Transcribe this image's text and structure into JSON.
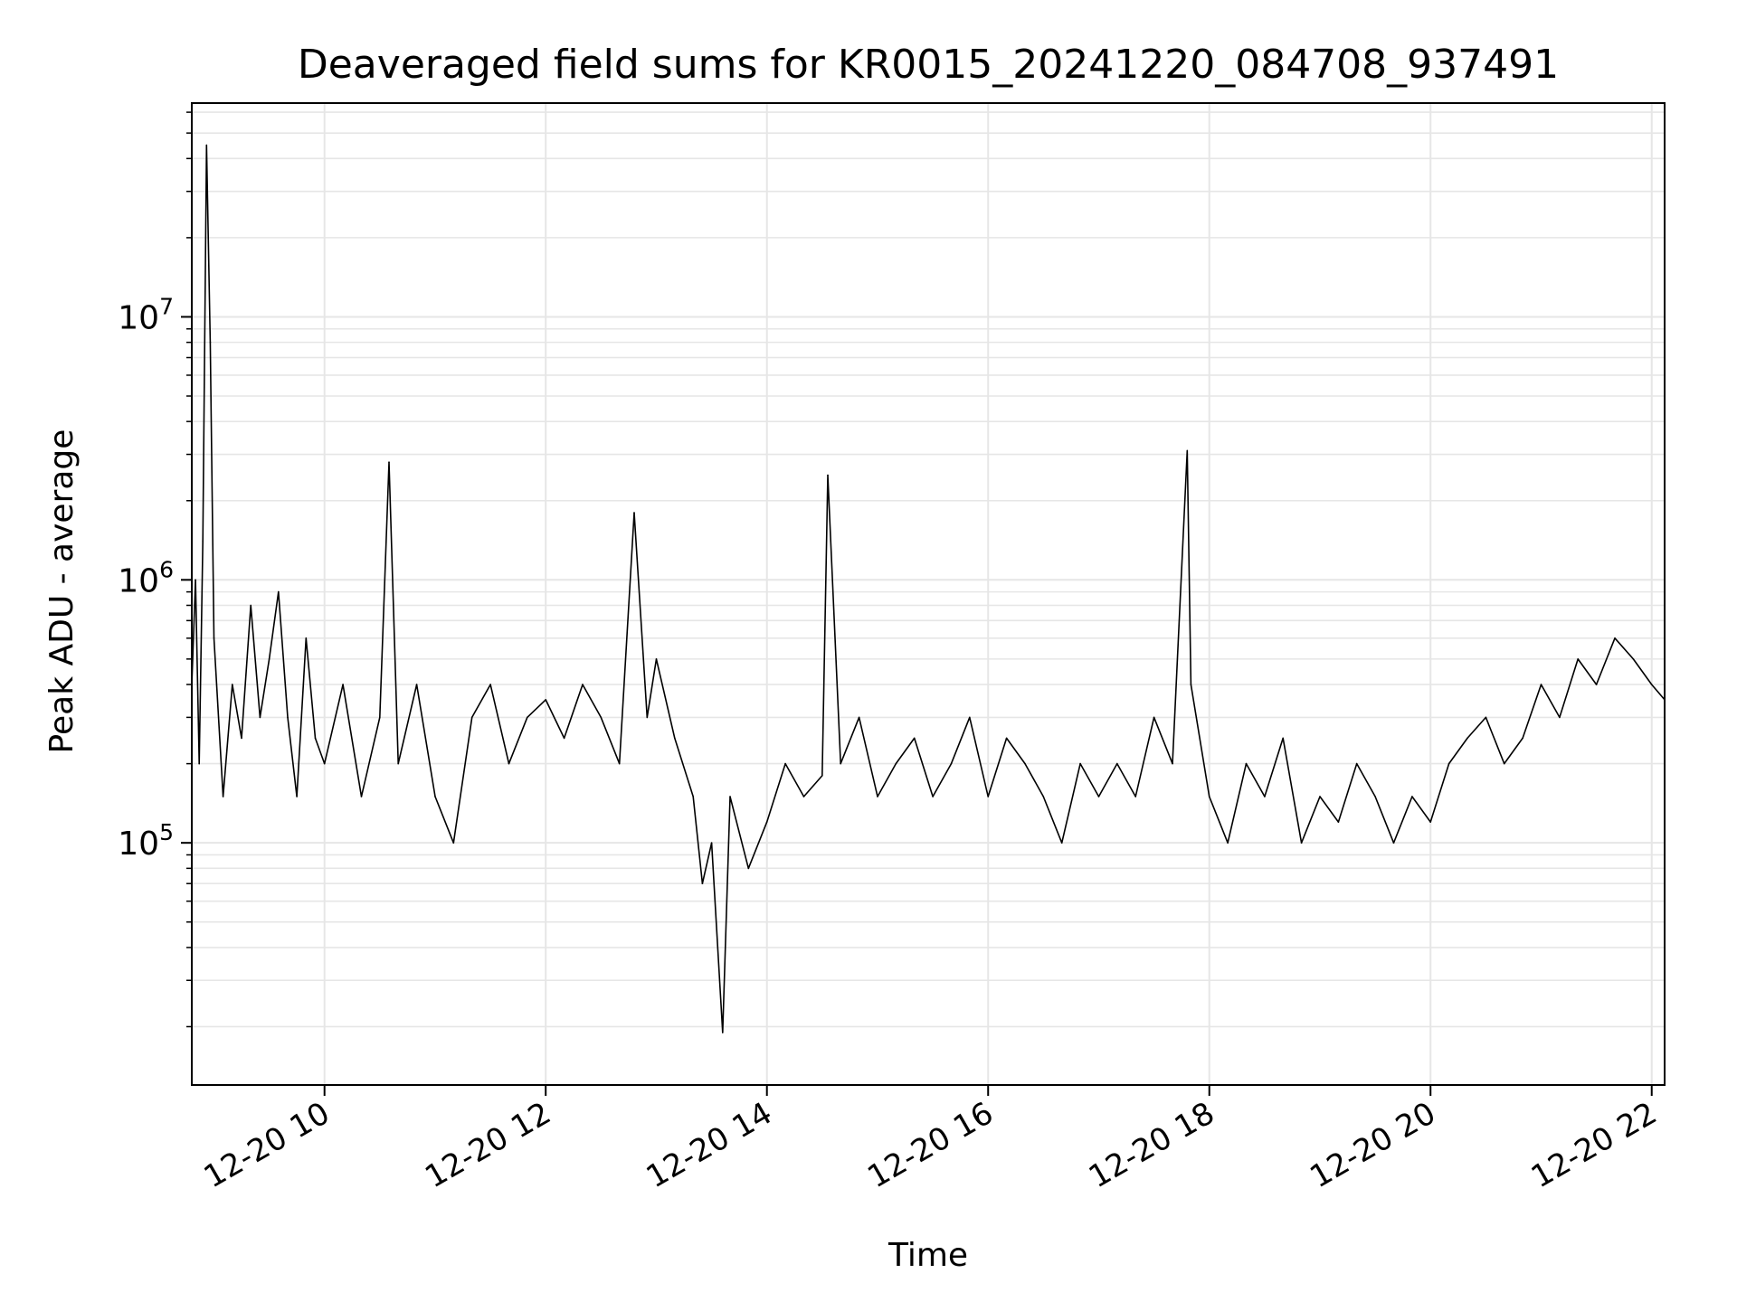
{
  "chart_data": {
    "type": "line",
    "title": "Deaveraged field sums for KR0015_20241220_084708_937491",
    "xlabel": "Time",
    "ylabel": "Peak ADU - average",
    "yscale": "log",
    "grid": true,
    "line_color": "#000000",
    "grid_color": "#e6e6e6",
    "xlim": [
      "12-20 08:48",
      "12-20 22:07"
    ],
    "ylim": [
      12000,
      65000000
    ],
    "x_ticks": [
      "12-20 10",
      "12-20 12",
      "12-20 14",
      "12-20 16",
      "12-20 18",
      "12-20 20",
      "12-20 22"
    ],
    "y_ticks": [
      {
        "value": 100000,
        "base": "10",
        "exp": "5"
      },
      {
        "value": 1000000,
        "base": "10",
        "exp": "6"
      },
      {
        "value": 10000000,
        "base": "10",
        "exp": "7"
      }
    ],
    "series": [
      {
        "x": [
          "12-20 08:48",
          "12-20 08:50",
          "12-20 08:52",
          "12-20 08:54",
          "12-20 08:56",
          "12-20 08:58",
          "12-20 09:00",
          "12-20 09:05",
          "12-20 09:10",
          "12-20 09:15",
          "12-20 09:20",
          "12-20 09:25",
          "12-20 09:30",
          "12-20 09:35",
          "12-20 09:40",
          "12-20 09:45",
          "12-20 09:50",
          "12-20 09:55",
          "12-20 10:00",
          "12-20 10:10",
          "12-20 10:20",
          "12-20 10:30",
          "12-20 10:35",
          "12-20 10:40",
          "12-20 10:50",
          "12-20 11:00",
          "12-20 11:10",
          "12-20 11:20",
          "12-20 11:30",
          "12-20 11:40",
          "12-20 11:50",
          "12-20 12:00",
          "12-20 12:10",
          "12-20 12:20",
          "12-20 12:30",
          "12-20 12:40",
          "12-20 12:48",
          "12-20 12:55",
          "12-20 13:00",
          "12-20 13:10",
          "12-20 13:20",
          "12-20 13:25",
          "12-20 13:30",
          "12-20 13:36",
          "12-20 13:40",
          "12-20 13:50",
          "12-20 14:00",
          "12-20 14:10",
          "12-20 14:20",
          "12-20 14:30",
          "12-20 14:33",
          "12-20 14:40",
          "12-20 14:50",
          "12-20 15:00",
          "12-20 15:10",
          "12-20 15:20",
          "12-20 15:30",
          "12-20 15:40",
          "12-20 15:50",
          "12-20 16:00",
          "12-20 16:10",
          "12-20 16:20",
          "12-20 16:30",
          "12-20 16:40",
          "12-20 16:50",
          "12-20 17:00",
          "12-20 17:10",
          "12-20 17:20",
          "12-20 17:30",
          "12-20 17:40",
          "12-20 17:48",
          "12-20 17:50",
          "12-20 18:00",
          "12-20 18:10",
          "12-20 18:20",
          "12-20 18:30",
          "12-20 18:40",
          "12-20 18:50",
          "12-20 19:00",
          "12-20 19:10",
          "12-20 19:20",
          "12-20 19:30",
          "12-20 19:40",
          "12-20 19:50",
          "12-20 20:00",
          "12-20 20:10",
          "12-20 20:20",
          "12-20 20:30",
          "12-20 20:40",
          "12-20 20:50",
          "12-20 21:00",
          "12-20 21:10",
          "12-20 21:20",
          "12-20 21:30",
          "12-20 21:40",
          "12-20 21:50",
          "12-20 22:00",
          "12-20 22:07"
        ],
        "y": [
          400000,
          1000000,
          200000,
          1400000,
          45000000,
          8000000,
          600000,
          150000,
          400000,
          250000,
          800000,
          300000,
          500000,
          900000,
          300000,
          150000,
          600000,
          250000,
          200000,
          400000,
          150000,
          300000,
          2800000,
          200000,
          400000,
          150000,
          100000,
          300000,
          400000,
          200000,
          300000,
          350000,
          250000,
          400000,
          300000,
          200000,
          1800000,
          300000,
          500000,
          250000,
          150000,
          70000,
          100000,
          19000,
          150000,
          80000,
          120000,
          200000,
          150000,
          180000,
          2500000,
          200000,
          300000,
          150000,
          200000,
          250000,
          150000,
          200000,
          300000,
          150000,
          250000,
          200000,
          150000,
          100000,
          200000,
          150000,
          200000,
          150000,
          300000,
          200000,
          3100000,
          400000,
          150000,
          100000,
          200000,
          150000,
          250000,
          100000,
          150000,
          120000,
          200000,
          150000,
          100000,
          150000,
          120000,
          200000,
          250000,
          300000,
          200000,
          250000,
          400000,
          300000,
          500000,
          400000,
          600000,
          500000,
          400000,
          350000
        ]
      }
    ]
  }
}
